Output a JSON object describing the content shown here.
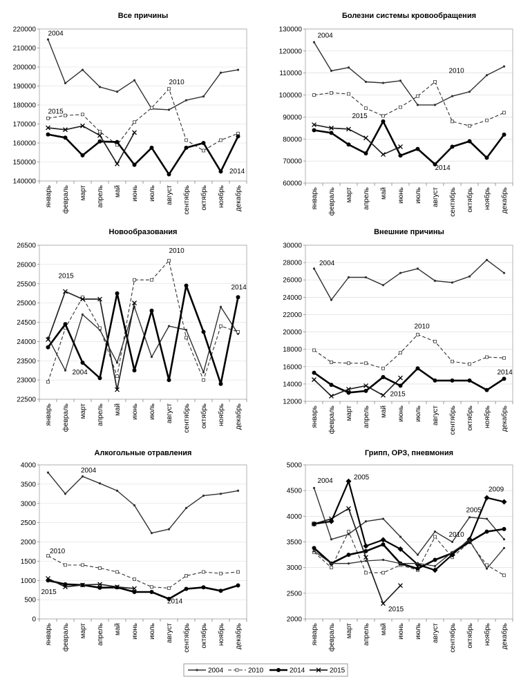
{
  "months": [
    "январь",
    "февраль",
    "март",
    "апрель",
    "май",
    "июнь",
    "июль",
    "август",
    "сентябрь",
    "октябрь",
    "ноябрь",
    "декабрь"
  ],
  "legend": [
    {
      "key": "2004",
      "label": "2004"
    },
    {
      "key": "2010",
      "label": "2010"
    },
    {
      "key": "2014",
      "label": "2014"
    },
    {
      "key": "2015",
      "label": "2015"
    }
  ],
  "chart_data": [
    {
      "type": "line",
      "title": "Все причины",
      "ylim": [
        140000,
        220000
      ],
      "yticks": [
        140000,
        150000,
        160000,
        170000,
        180000,
        190000,
        200000,
        210000,
        220000
      ],
      "series": [
        {
          "name": "2004",
          "values": [
            214500,
            191500,
            198500,
            189500,
            187000,
            193000,
            178000,
            177500,
            182500,
            184500,
            197000,
            198500
          ]
        },
        {
          "name": "2010",
          "values": [
            173000,
            174500,
            175000,
            166000,
            159000,
            171000,
            178500,
            188500,
            161500,
            156000,
            161500,
            165000
          ]
        },
        {
          "name": "2014",
          "values": [
            164500,
            162800,
            153500,
            160800,
            160500,
            148500,
            157500,
            143500,
            157500,
            160000,
            145000,
            163500
          ]
        },
        {
          "name": "2015",
          "values": [
            168000,
            167000,
            169000,
            164000,
            149000,
            165500
          ]
        }
      ],
      "annotations": [
        {
          "text": "2004",
          "x": 0,
          "y": 216500
        },
        {
          "text": "2010",
          "x": 7,
          "y": 191000
        },
        {
          "text": "2015",
          "x": 0,
          "y": 175500
        },
        {
          "text": "2014",
          "x": 10.5,
          "y": 144000
        }
      ]
    },
    {
      "type": "line",
      "title": "Болезни системы кровообращения",
      "ylim": [
        60000,
        130000
      ],
      "yticks": [
        60000,
        70000,
        80000,
        90000,
        100000,
        110000,
        120000,
        130000
      ],
      "series": [
        {
          "name": "2004",
          "values": [
            124000,
            111000,
            112500,
            106000,
            105500,
            106500,
            95500,
            95500,
            99500,
            101500,
            109000,
            113000
          ]
        },
        {
          "name": "2010",
          "values": [
            100000,
            101000,
            100500,
            94000,
            90500,
            94500,
            99500,
            106000,
            88000,
            86000,
            88500,
            92000
          ]
        },
        {
          "name": "2014",
          "values": [
            84000,
            82800,
            77500,
            73500,
            88000,
            72500,
            75500,
            68500,
            76500,
            79000,
            71500,
            82000
          ]
        },
        {
          "name": "2015",
          "values": [
            86500,
            85000,
            84500,
            80500,
            73000,
            76500
          ]
        }
      ],
      "annotations": [
        {
          "text": "2004",
          "x": 0.2,
          "y": 126000
        },
        {
          "text": "2010",
          "x": 7.8,
          "y": 110000
        },
        {
          "text": "2015",
          "x": 2.2,
          "y": 89500
        },
        {
          "text": "2014",
          "x": 7,
          "y": 66000
        }
      ]
    },
    {
      "type": "line",
      "title": "Новообразования",
      "ylim": [
        22500,
        26500
      ],
      "yticks": [
        22500,
        23000,
        23500,
        24000,
        24500,
        25000,
        25500,
        26000,
        26500
      ],
      "series": [
        {
          "name": "2004",
          "values": [
            24100,
            23250,
            24700,
            24300,
            23450,
            24900,
            23600,
            24400,
            24300,
            23200,
            24900,
            24200
          ]
        },
        {
          "name": "2010",
          "values": [
            22950,
            24350,
            25150,
            24350,
            23100,
            25600,
            25600,
            26100,
            24100,
            23000,
            24400,
            24250
          ]
        },
        {
          "name": "2014",
          "values": [
            23850,
            24450,
            23450,
            23050,
            25250,
            23250,
            24800,
            23000,
            25450,
            24250,
            22900,
            25150
          ]
        },
        {
          "name": "2015",
          "values": [
            24050,
            25300,
            25100,
            25100,
            22750,
            25000
          ]
        }
      ],
      "annotations": [
        {
          "text": "2010",
          "x": 7,
          "y": 26300
        },
        {
          "text": "2015",
          "x": 0.6,
          "y": 25650
        },
        {
          "text": "2014",
          "x": 10.6,
          "y": 25350
        },
        {
          "text": "2004",
          "x": 1.4,
          "y": 23150
        }
      ]
    },
    {
      "type": "line",
      "title": "Внешние причины",
      "ylim": [
        12000,
        30000
      ],
      "yticks": [
        12000,
        14000,
        16000,
        18000,
        20000,
        22000,
        24000,
        26000,
        28000,
        30000
      ],
      "series": [
        {
          "name": "2004",
          "values": [
            27300,
            23700,
            26300,
            26300,
            25400,
            26800,
            27300,
            25900,
            25700,
            26400,
            28300,
            26800
          ]
        },
        {
          "name": "2010",
          "values": [
            17900,
            16500,
            16400,
            16400,
            15800,
            17600,
            19700,
            18900,
            16600,
            16300,
            17100,
            17000
          ]
        },
        {
          "name": "2014",
          "values": [
            15300,
            13900,
            13000,
            13200,
            14800,
            13800,
            15800,
            14400,
            14400,
            14400,
            13300,
            14600
          ]
        },
        {
          "name": "2015",
          "values": [
            14500,
            12600,
            13400,
            13800,
            12700,
            14700
          ]
        }
      ],
      "annotations": [
        {
          "text": "2004",
          "x": 0.3,
          "y": 27700
        },
        {
          "text": "2010",
          "x": 5.8,
          "y": 20400
        },
        {
          "text": "2014",
          "x": 10.6,
          "y": 15100
        },
        {
          "text": "2015",
          "x": 4.4,
          "y": 12600
        }
      ]
    },
    {
      "type": "line",
      "title": "Алкогольные отравления",
      "ylim": [
        0,
        4000
      ],
      "yticks": [
        0,
        500,
        1000,
        1500,
        2000,
        2500,
        3000,
        3500,
        4000
      ],
      "series": [
        {
          "name": "2004",
          "values": [
            3800,
            3250,
            3700,
            3520,
            3330,
            2950,
            2230,
            2330,
            2880,
            3200,
            3250,
            3330
          ]
        },
        {
          "name": "2010",
          "values": [
            1640,
            1400,
            1400,
            1320,
            1220,
            1030,
            830,
            800,
            1120,
            1220,
            1180,
            1220
          ]
        },
        {
          "name": "2014",
          "values": [
            1000,
            900,
            880,
            810,
            820,
            700,
            700,
            520,
            780,
            820,
            730,
            870
          ]
        },
        {
          "name": "2015",
          "values": [
            1050,
            830,
            880,
            900,
            830,
            790
          ]
        }
      ],
      "annotations": [
        {
          "text": "2004",
          "x": 1.9,
          "y": 3800
        },
        {
          "text": "2010",
          "x": 0.1,
          "y": 1700
        },
        {
          "text": "2015",
          "x": -0.4,
          "y": 650
        },
        {
          "text": "2014",
          "x": 6.9,
          "y": 400
        }
      ]
    },
    {
      "type": "line",
      "title": "Грипп, ОРЗ, пневмония",
      "ylim": [
        2000,
        5000
      ],
      "yticks": [
        2000,
        2500,
        3000,
        3500,
        4000,
        4500,
        5000
      ],
      "series": [
        {
          "name": "2004",
          "values": [
            4550,
            3550,
            3650,
            3900,
            3950,
            3600,
            3250,
            3700,
            3500,
            3980,
            3950,
            3550
          ]
        },
        {
          "name": "2010",
          "values": [
            3300,
            3000,
            3700,
            2900,
            2900,
            3050,
            2950,
            3600,
            3200,
            3500,
            3050,
            2850
          ]
        },
        {
          "name": "2014",
          "values": [
            3380,
            3080,
            3250,
            3320,
            3450,
            3080,
            2980,
            3150,
            3280,
            3500,
            3700,
            3750
          ]
        },
        {
          "name": "2015",
          "values": [
            3850,
            3950,
            4150,
            3200,
            2300,
            2650
          ]
        },
        {
          "name": "2005",
          "values": [
            3850,
            3900,
            4680,
            3420,
            3540,
            3360,
            3060,
            2950,
            3250,
            3550,
            4360,
            4280
          ]
        },
        {
          "name": "2009",
          "values": [
            3320,
            3080,
            3080,
            3130,
            3150,
            3080,
            3080,
            3030,
            3300,
            3530,
            2980,
            3380
          ]
        }
      ],
      "annotations": [
        {
          "text": "2004",
          "x": 0.2,
          "y": 4650
        },
        {
          "text": "2005",
          "x": 2.3,
          "y": 4720
        },
        {
          "text": "2009",
          "x": 10.1,
          "y": 4480
        },
        {
          "text": "2005",
          "x": 8.8,
          "y": 4080
        },
        {
          "text": "2010",
          "x": 7.8,
          "y": 3600
        },
        {
          "text": "2015",
          "x": 4.3,
          "y": 2150
        }
      ]
    }
  ]
}
